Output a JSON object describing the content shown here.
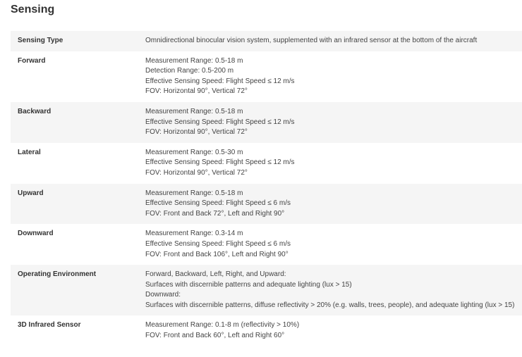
{
  "title": "Sensing",
  "table": {
    "rows": [
      {
        "label": "Sensing Type",
        "lines": [
          "Omnidirectional binocular vision system, supplemented with an infrared sensor at the bottom of the aircraft"
        ]
      },
      {
        "label": "Forward",
        "lines": [
          "Measurement Range: 0.5-18 m",
          "Detection Range: 0.5-200 m",
          "Effective Sensing Speed: Flight Speed ≤ 12 m/s",
          "FOV: Horizontal 90°, Vertical 72°"
        ]
      },
      {
        "label": "Backward",
        "lines": [
          "Measurement Range: 0.5-18 m",
          "Effective Sensing Speed: Flight Speed ≤ 12 m/s",
          "FOV: Horizontal 90°, Vertical 72°"
        ]
      },
      {
        "label": "Lateral",
        "lines": [
          "Measurement Range: 0.5-30 m",
          "Effective Sensing Speed: Flight Speed ≤ 12 m/s",
          "FOV: Horizontal 90°, Vertical 72°"
        ]
      },
      {
        "label": "Upward",
        "lines": [
          "Measurement Range: 0.5-18 m",
          "Effective Sensing Speed: Flight Speed ≤ 6 m/s",
          "FOV: Front and Back 72°, Left and Right 90°"
        ]
      },
      {
        "label": "Downward",
        "lines": [
          "Measurement Range: 0.3-14 m",
          "Effective Sensing Speed: Flight Speed ≤ 6 m/s",
          "FOV: Front and Back 106°, Left and Right 90°"
        ]
      },
      {
        "label": "Operating Environment",
        "lines": [
          "Forward, Backward, Left, Right, and Upward:",
          "Surfaces with discernible patterns and adequate lighting (lux > 15)",
          "Downward:",
          "Surfaces with discernible patterns, diffuse reflectivity > 20% (e.g. walls, trees, people), and adequate lighting (lux > 15)"
        ]
      },
      {
        "label": "3D Infrared Sensor",
        "lines": [
          "Measurement Range: 0.1-8 m (reflectivity > 10%)",
          "FOV: Front and Back 60°, Left and Right 60°"
        ]
      }
    ]
  }
}
